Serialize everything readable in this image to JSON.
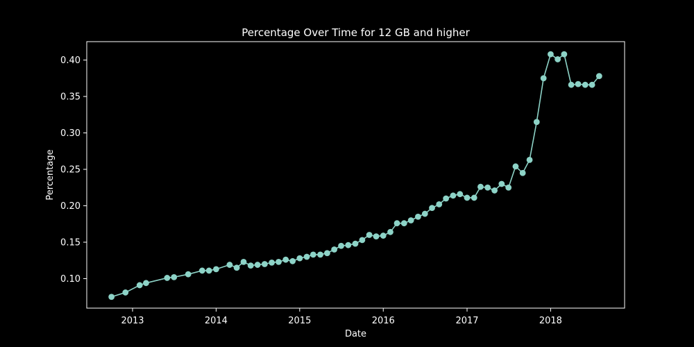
{
  "chart_data": {
    "type": "line",
    "title": "Percentage Over Time for 12 GB and higher",
    "xlabel": "Date",
    "ylabel": "Percentage",
    "x_ticks": [
      "2013",
      "2014",
      "2015",
      "2016",
      "2017",
      "2018"
    ],
    "y_ticks": [
      "0.10",
      "0.15",
      "0.20",
      "0.25",
      "0.30",
      "0.35",
      "0.40"
    ],
    "grid": false,
    "colors": {
      "background": "#000000",
      "line": "#8dd3c7",
      "axes": "#ffffff",
      "text": "#ffffff"
    },
    "series": [
      {
        "points": [
          [
            "2012-10-01",
            0.075
          ],
          [
            "2012-12-01",
            0.081
          ],
          [
            "2013-02-01",
            0.091
          ],
          [
            "2013-03-01",
            0.094
          ],
          [
            "2013-06-01",
            0.101
          ],
          [
            "2013-07-01",
            0.102
          ],
          [
            "2013-09-01",
            0.106
          ],
          [
            "2013-11-01",
            0.111
          ],
          [
            "2013-12-01",
            0.111
          ],
          [
            "2014-01-01",
            0.113
          ],
          [
            "2014-03-01",
            0.119
          ],
          [
            "2014-04-01",
            0.115
          ],
          [
            "2014-05-01",
            0.123
          ],
          [
            "2014-06-01",
            0.118
          ],
          [
            "2014-07-01",
            0.119
          ],
          [
            "2014-08-01",
            0.12
          ],
          [
            "2014-09-01",
            0.122
          ],
          [
            "2014-10-01",
            0.123
          ],
          [
            "2014-11-01",
            0.126
          ],
          [
            "2014-12-01",
            0.124
          ],
          [
            "2015-01-01",
            0.128
          ],
          [
            "2015-02-01",
            0.13
          ],
          [
            "2015-03-01",
            0.133
          ],
          [
            "2015-04-01",
            0.133
          ],
          [
            "2015-05-01",
            0.135
          ],
          [
            "2015-06-01",
            0.14
          ],
          [
            "2015-07-01",
            0.145
          ],
          [
            "2015-08-01",
            0.146
          ],
          [
            "2015-09-01",
            0.148
          ],
          [
            "2015-10-01",
            0.153
          ],
          [
            "2015-11-01",
            0.16
          ],
          [
            "2015-12-01",
            0.158
          ],
          [
            "2016-01-01",
            0.159
          ],
          [
            "2016-02-01",
            0.164
          ],
          [
            "2016-03-01",
            0.176
          ],
          [
            "2016-04-01",
            0.176
          ],
          [
            "2016-05-01",
            0.18
          ],
          [
            "2016-06-01",
            0.185
          ],
          [
            "2016-07-01",
            0.189
          ],
          [
            "2016-08-01",
            0.197
          ],
          [
            "2016-09-01",
            0.202
          ],
          [
            "2016-10-01",
            0.21
          ],
          [
            "2016-11-01",
            0.214
          ],
          [
            "2016-12-01",
            0.216
          ],
          [
            "2017-01-01",
            0.211
          ],
          [
            "2017-02-01",
            0.211
          ],
          [
            "2017-03-01",
            0.226
          ],
          [
            "2017-04-01",
            0.225
          ],
          [
            "2017-05-01",
            0.221
          ],
          [
            "2017-06-01",
            0.23
          ],
          [
            "2017-07-01",
            0.225
          ],
          [
            "2017-08-01",
            0.254
          ],
          [
            "2017-09-01",
            0.245
          ],
          [
            "2017-10-01",
            0.263
          ],
          [
            "2017-11-01",
            0.315
          ],
          [
            "2017-12-01",
            0.375
          ],
          [
            "2018-01-01",
            0.408
          ],
          [
            "2018-02-01",
            0.401
          ],
          [
            "2018-03-01",
            0.408
          ],
          [
            "2018-04-01",
            0.366
          ],
          [
            "2018-05-01",
            0.367
          ],
          [
            "2018-06-01",
            0.366
          ],
          [
            "2018-07-01",
            0.366
          ],
          [
            "2018-08-01",
            0.378
          ]
        ]
      }
    ]
  }
}
